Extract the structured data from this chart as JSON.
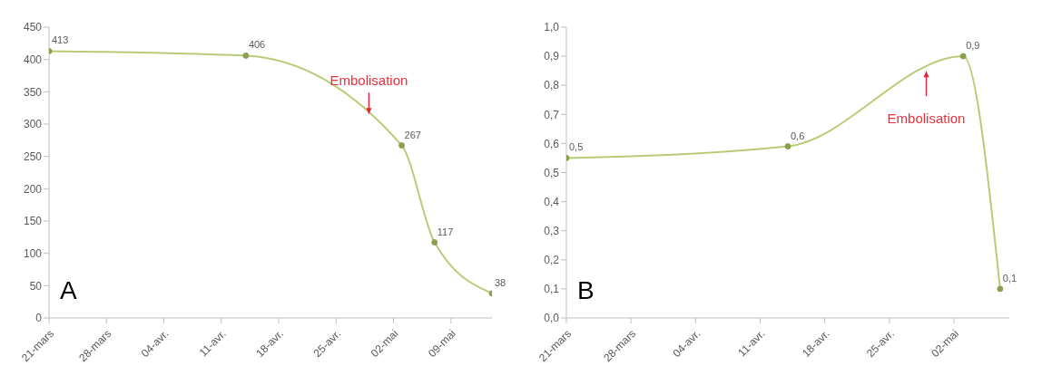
{
  "chart_data": [
    {
      "type": "line",
      "title": "A",
      "x": [
        "--03-21",
        "--04-14",
        "--05-03",
        "--05-07",
        "--05-14"
      ],
      "series": [
        {
          "color": "#b8cc78",
          "values": [
            413,
            406,
            267,
            117,
            38
          ]
        }
      ],
      "data_labels": true,
      "marker": "circle",
      "grid": false,
      "legend": false,
      "xlim": [
        "--03-21",
        "--05-14"
      ],
      "xticks": [
        {
          "value": "--03-21",
          "label": "21-mars"
        },
        {
          "value": "--03-28",
          "label": "28-mars"
        },
        {
          "value": "--04-04",
          "label": "04-avr."
        },
        {
          "value": "--04-11",
          "label": "11-avr."
        },
        {
          "value": "--04-18",
          "label": "18-avr."
        },
        {
          "value": "--04-25",
          "label": "25-avr."
        },
        {
          "value": "--05-02",
          "label": "02-mai"
        },
        {
          "value": "--05-09",
          "label": "09-mai"
        }
      ],
      "ylim": [
        0,
        450
      ],
      "yticks": [
        0,
        50,
        100,
        150,
        200,
        250,
        300,
        350,
        400,
        450
      ],
      "annotations": [
        {
          "text": "Embolisation",
          "x": "--04-29",
          "y": 315
        }
      ]
    },
    {
      "type": "line",
      "title": "B",
      "x": [
        "--03-21",
        "--04-14",
        "--05-03",
        "--05-07"
      ],
      "series": [
        {
          "color": "#b8cc78",
          "values": [
            0.55,
            0.59,
            0.9,
            0.1
          ],
          "value_labels": [
            "0,5",
            "0,6",
            "0,9",
            "0,1"
          ]
        }
      ],
      "marker": "circle",
      "grid": false,
      "legend": false,
      "xlim": [
        "--03-21",
        "--05-08"
      ],
      "xticks": [
        {
          "value": "--03-21",
          "label": "21-mars"
        },
        {
          "value": "--03-28",
          "label": "28-mars"
        },
        {
          "value": "--04-04",
          "label": "04-avr."
        },
        {
          "value": "--04-11",
          "label": "11-avr."
        },
        {
          "value": "--04-18",
          "label": "18-avr."
        },
        {
          "value": "--04-25",
          "label": "25-avr."
        },
        {
          "value": "--05-02",
          "label": "02-mai"
        }
      ],
      "ylim": [
        0,
        1
      ],
      "yticks": [
        {
          "value": 0,
          "label": "0,0"
        },
        {
          "value": 0.1,
          "label": "0,1"
        },
        {
          "value": 0.2,
          "label": "0,2"
        },
        {
          "value": 0.3,
          "label": "0,3"
        },
        {
          "value": 0.4,
          "label": "0,4"
        },
        {
          "value": 0.5,
          "label": "0,5"
        },
        {
          "value": 0.6,
          "label": "0,6"
        },
        {
          "value": 0.7,
          "label": "0,7"
        },
        {
          "value": 0.8,
          "label": "0,8"
        },
        {
          "value": 0.9,
          "label": "0,9"
        },
        {
          "value": 1,
          "label": "1,0"
        }
      ],
      "annotations": [
        {
          "text": "Embolisation",
          "x": "--04-29",
          "y": 0.85
        }
      ]
    }
  ]
}
